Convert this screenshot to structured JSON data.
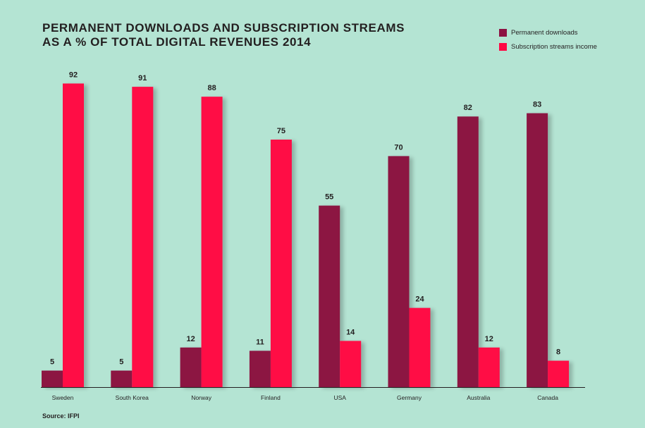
{
  "title_lines": [
    "PERMANENT DOWNLOADS AND SUBSCRIPTION STREAMS",
    "AS A % OF TOTAL DIGITAL REVENUES 2014"
  ],
  "source": "Source: IFPI",
  "colors": {
    "background": "#b4e4d3",
    "downloads": "#8c1243",
    "streams": "#ff0844",
    "axis": "#231f20"
  },
  "chart_data": {
    "type": "bar",
    "title": "PERMANENT DOWNLOADS AND SUBSCRIPTION STREAMS AS A % OF TOTAL DIGITAL REVENUES 2014",
    "categories": [
      "Sweden",
      "South Korea",
      "Norway",
      "Finland",
      "USA",
      "Germany",
      "Australia",
      "Canada"
    ],
    "series": [
      {
        "name": "Permanent downloads",
        "values": [
          5,
          5,
          12,
          11,
          55,
          70,
          82,
          83
        ]
      },
      {
        "name": "Subscription streams income",
        "values": [
          92,
          91,
          88,
          75,
          14,
          24,
          12,
          8
        ]
      }
    ],
    "xlabel": "",
    "ylabel": "",
    "ylim": [
      0,
      100
    ],
    "grid": false,
    "legend": "top-right"
  }
}
